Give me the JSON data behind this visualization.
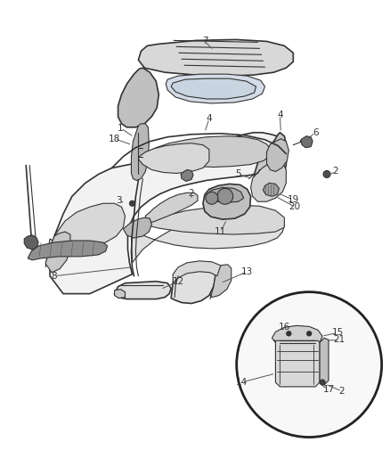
{
  "bg_color": "#ffffff",
  "line_color": "#333333",
  "label_color": "#333333",
  "fig_width": 4.38,
  "fig_height": 5.33,
  "dpi": 100
}
